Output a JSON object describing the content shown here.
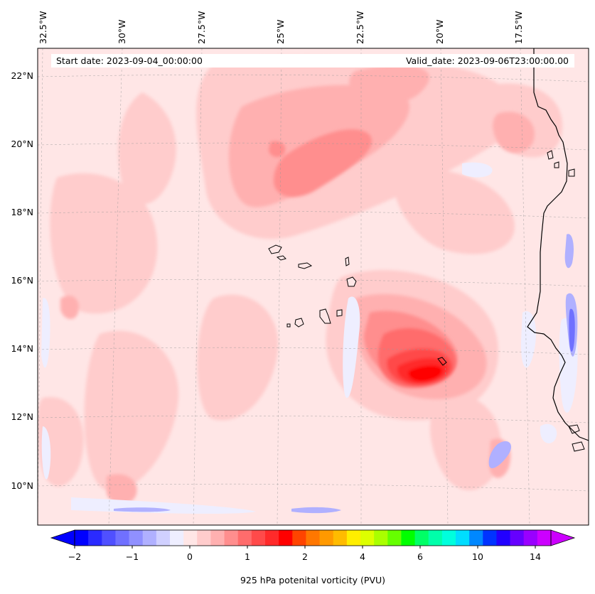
{
  "map": {
    "start_label": "Start date: 2023-09-04_00:00:00",
    "valid_label": "Valid_date: 2023-09-06T23:00:00.00",
    "lon_labels": [
      "32.5°W",
      "30°W",
      "27.5°W",
      "25°W",
      "22.5°W",
      "20°W",
      "17.5°W"
    ],
    "lat_labels": [
      "22°N",
      "20°N",
      "18°N",
      "16°N",
      "14°N",
      "12°N",
      "10°N"
    ],
    "field_background_color": "#ffe6e6",
    "coastline_color": "#000000"
  },
  "colorbar": {
    "label": "925 hPa potenital vorticity (PVU)",
    "tick_labels": [
      "−2",
      "−1",
      "0",
      "1",
      "2",
      "4",
      "6",
      "10",
      "14"
    ],
    "colors": [
      "#0000ff",
      "#2a2aff",
      "#5050ff",
      "#7070ff",
      "#9090ff",
      "#b0b0ff",
      "#d0d0ff",
      "#eeeeff",
      "#ffe6e6",
      "#ffcccc",
      "#ffb0b0",
      "#ff8e8e",
      "#ff6c6c",
      "#ff4a4a",
      "#ff2a2a",
      "#ff0000",
      "#ff4400",
      "#ff7700",
      "#ff9900",
      "#ffbb00",
      "#ffee00",
      "#ddff00",
      "#aaff00",
      "#66ff00",
      "#00ff00",
      "#00ff66",
      "#00ffaa",
      "#00ffdd",
      "#00ddff",
      "#0088ff",
      "#0033ff",
      "#2200ff",
      "#6600ff",
      "#9900ff",
      "#cc00ff"
    ],
    "under_color": "#0000ff",
    "over_color": "#cc00ff"
  }
}
